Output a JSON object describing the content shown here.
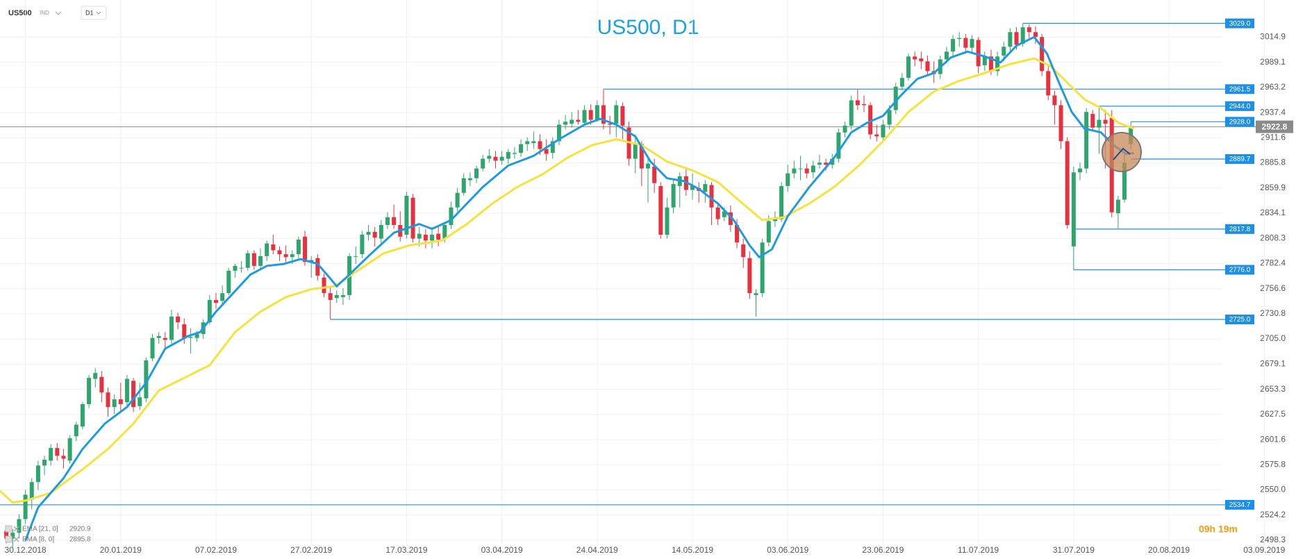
{
  "toolbar": {
    "symbol": "US500",
    "market": "IND",
    "timeframe": "D1"
  },
  "countdown": "09h 19m",
  "chart_data": {
    "type": "candlestick",
    "title": "US500, D1",
    "up_color": "#2fa56e",
    "down_color": "#e8313f",
    "grid": true,
    "xlim": [
      -4,
      200
    ],
    "ylim": [
      2494,
      3053
    ],
    "xticks": [
      {
        "value": 0,
        "label": "30.12.2018"
      },
      {
        "value": 15,
        "label": "20.01.2019"
      },
      {
        "value": 30,
        "label": "07.02.2019"
      },
      {
        "value": 45,
        "label": "27.02.2019"
      },
      {
        "value": 60,
        "label": "17.03.2019"
      },
      {
        "value": 75,
        "label": "03.04.2019"
      },
      {
        "value": 90,
        "label": "24.04.2019"
      },
      {
        "value": 105,
        "label": "14.05.2019"
      },
      {
        "value": 120,
        "label": "03.06.2019"
      },
      {
        "value": 135,
        "label": "23.06.2019"
      },
      {
        "value": 150,
        "label": "11.07.2019"
      },
      {
        "value": 165,
        "label": "31.07.2019"
      },
      {
        "value": 180,
        "label": "20.08.2019"
      },
      {
        "value": 195,
        "label": "03.09.2019"
      }
    ],
    "yticks": [
      3014.9,
      2989.1,
      2963.2,
      2937.4,
      2911.6,
      2885.8,
      2859.9,
      2834.1,
      2808.3,
      2782.4,
      2756.6,
      2730.8,
      {
        "value": 2705,
        "label": "2705.0"
      },
      2679.1,
      2653.3,
      2627.5,
      2601.6,
      2575.8,
      {
        "value": 2550,
        "label": "2550.0"
      },
      2524.2,
      2498.3
    ],
    "x": [
      -3,
      -2,
      -1,
      0,
      1,
      2,
      3,
      4,
      5,
      6,
      7,
      8,
      9,
      10,
      11,
      12,
      13,
      14,
      15,
      16,
      17,
      18,
      19,
      20,
      21,
      22,
      23,
      24,
      25,
      26,
      27,
      28,
      29,
      30,
      31,
      32,
      33,
      34,
      35,
      36,
      37,
      38,
      39,
      40,
      41,
      42,
      43,
      44,
      45,
      46,
      47,
      48,
      49,
      50,
      51,
      52,
      53,
      54,
      55,
      56,
      57,
      58,
      59,
      60,
      61,
      62,
      63,
      64,
      65,
      66,
      67,
      68,
      69,
      70,
      71,
      72,
      73,
      74,
      75,
      76,
      77,
      78,
      79,
      80,
      81,
      82,
      83,
      84,
      85,
      86,
      87,
      88,
      89,
      90,
      91,
      92,
      93,
      94,
      95,
      96,
      97,
      98,
      99,
      100,
      101,
      102,
      103,
      104,
      105,
      106,
      107,
      108,
      109,
      110,
      111,
      112,
      113,
      114,
      115,
      116,
      117,
      118,
      119,
      120,
      121,
      122,
      123,
      124,
      125,
      126,
      127,
      128,
      129,
      130,
      131,
      132,
      133,
      134,
      135,
      136,
      137,
      138,
      139,
      140,
      141,
      142,
      143,
      144,
      145,
      146,
      147,
      148,
      149,
      150,
      151,
      152,
      153,
      154,
      155,
      156,
      157,
      158,
      159,
      160,
      161,
      162,
      163,
      164,
      165,
      166,
      167,
      168,
      169,
      170,
      171,
      172,
      173,
      174
    ],
    "open": [
      2508,
      2500,
      2506,
      2520,
      2540,
      2558,
      2575,
      2580,
      2593,
      2585,
      2580,
      2605,
      2615,
      2638,
      2664,
      2666,
      2650,
      2635,
      2643,
      2640,
      2662,
      2636,
      2644,
      2685,
      2706,
      2706,
      2704,
      2728,
      2720,
      2706,
      2706,
      2710,
      2722,
      2745,
      2744,
      2752,
      2775,
      2778,
      2778,
      2793,
      2780,
      2790,
      2802,
      2796,
      2792,
      2789,
      2792,
      2810,
      2784,
      2788,
      2768,
      2752,
      2747,
      2748,
      2750,
      2790,
      2792,
      2812,
      2815,
      2808,
      2822,
      2830,
      2822,
      2812,
      2850,
      2808,
      2812,
      2806,
      2813,
      2808,
      2822,
      2840,
      2855,
      2868,
      2870,
      2880,
      2890,
      2892,
      2888,
      2890,
      2895,
      2896,
      2905,
      2906,
      2908,
      2900,
      2896,
      2908,
      2925,
      2926,
      2930,
      2927,
      2940,
      2930,
      2945,
      2926,
      2926,
      2944,
      2922,
      2890,
      2905,
      2880,
      2882,
      2862,
      2812,
      2840,
      2862,
      2872,
      2858,
      2860,
      2856,
      2863,
      2840,
      2830,
      2835,
      2822,
      2802,
      2788,
      2750,
      2752,
      2804,
      2826,
      2828,
      2862,
      2875,
      2880,
      2880,
      2876,
      2884,
      2886,
      2884,
      2890,
      2917,
      2924,
      2950,
      2946,
      2945,
      2915,
      2912,
      2925,
      2940,
      2964,
      2973,
      2995,
      2993,
      2990,
      2980,
      2977,
      2992,
      3000,
      3013,
      3014,
      3004,
      3012,
      2986,
      2995,
      2980,
      2996,
      3005,
      3020,
      3008,
      3025,
      3020,
      3015,
      2980,
      2955,
      2945,
      2908,
      2800,
      2876,
      2880,
      2936,
      2922,
      2930,
      2932,
      2834,
      2848,
      2905
    ],
    "high": [
      2512,
      2510,
      2525,
      2550,
      2562,
      2580,
      2585,
      2597,
      2598,
      2592,
      2606,
      2620,
      2640,
      2668,
      2675,
      2672,
      2655,
      2648,
      2660,
      2668,
      2665,
      2660,
      2686,
      2710,
      2712,
      2712,
      2735,
      2732,
      2726,
      2716,
      2713,
      2725,
      2750,
      2752,
      2760,
      2778,
      2782,
      2785,
      2796,
      2796,
      2798,
      2806,
      2812,
      2800,
      2801,
      2796,
      2810,
      2816,
      2790,
      2792,
      2772,
      2758,
      2755,
      2757,
      2793,
      2800,
      2816,
      2822,
      2820,
      2827,
      2835,
      2843,
      2836,
      2856,
      2854,
      2820,
      2818,
      2820,
      2822,
      2825,
      2846,
      2860,
      2875,
      2876,
      2883,
      2894,
      2900,
      2898,
      2898,
      2900,
      2902,
      2910,
      2912,
      2918,
      2915,
      2910,
      2912,
      2930,
      2935,
      2938,
      2940,
      2945,
      2946,
      2950,
      2961.5,
      2934,
      2950,
      2948,
      2928,
      2915,
      2908,
      2890,
      2890,
      2866,
      2850,
      2868,
      2876,
      2880,
      2875,
      2866,
      2868,
      2866,
      2845,
      2840,
      2842,
      2828,
      2808,
      2795,
      2756,
      2808,
      2832,
      2836,
      2866,
      2884,
      2888,
      2893,
      2885,
      2888,
      2894,
      2890,
      2895,
      2921,
      2928,
      2955,
      2961,
      2955,
      2948,
      2925,
      2930,
      2945,
      2968,
      2978,
      2998,
      3000,
      3000,
      2996,
      2990,
      2996,
      3005,
      3017,
      3020,
      3018,
      3017,
      3015,
      3000,
      3002,
      3000,
      3010,
      3024,
      3025,
      3029,
      3028,
      3026,
      3018,
      2985,
      2960,
      2950,
      2912,
      2882,
      2886,
      2942,
      2940,
      2944,
      2940,
      2940,
      2852,
      2895,
      2928
    ],
    "low": [
      2495,
      2490,
      2500,
      2515,
      2530,
      2550,
      2565,
      2575,
      2580,
      2572,
      2577,
      2600,
      2612,
      2634,
      2655,
      2640,
      2625,
      2628,
      2630,
      2635,
      2630,
      2632,
      2640,
      2682,
      2700,
      2696,
      2700,
      2715,
      2700,
      2690,
      2702,
      2705,
      2720,
      2736,
      2740,
      2750,
      2768,
      2773,
      2775,
      2776,
      2776,
      2785,
      2792,
      2785,
      2784,
      2782,
      2788,
      2780,
      2768,
      2765,
      2748,
      2725,
      2742,
      2740,
      2745,
      2782,
      2788,
      2806,
      2800,
      2802,
      2818,
      2818,
      2805,
      2808,
      2804,
      2800,
      2798,
      2798,
      2800,
      2804,
      2818,
      2836,
      2852,
      2862,
      2865,
      2877,
      2886,
      2880,
      2884,
      2885,
      2890,
      2892,
      2898,
      2900,
      2894,
      2888,
      2890,
      2904,
      2920,
      2922,
      2925,
      2925,
      2925,
      2928,
      2920,
      2915,
      2912,
      2910,
      2883,
      2875,
      2862,
      2845,
      2855,
      2808,
      2808,
      2834,
      2840,
      2852,
      2848,
      2845,
      2845,
      2822,
      2822,
      2826,
      2815,
      2798,
      2778,
      2746,
      2728,
      2748,
      2800,
      2820,
      2825,
      2856,
      2870,
      2868,
      2870,
      2870,
      2880,
      2878,
      2880,
      2886,
      2912,
      2920,
      2940,
      2938,
      2910,
      2908,
      2908,
      2920,
      2936,
      2960,
      2970,
      2985,
      2982,
      2975,
      2968,
      2972,
      2988,
      2995,
      3005,
      2998,
      2998,
      2978,
      2980,
      2976,
      2975,
      2990,
      3000,
      3002,
      3005,
      3013,
      3008,
      2975,
      2950,
      2925,
      2900,
      2818,
      2776,
      2868,
      2875,
      2918,
      2895,
      2880,
      2830,
      2817.8,
      2845,
      2900
    ],
    "close": [
      2500,
      2506,
      2520,
      2545,
      2558,
      2575,
      2581,
      2593,
      2585,
      2582,
      2603,
      2617,
      2638,
      2665,
      2670,
      2650,
      2635,
      2643,
      2638,
      2664,
      2635,
      2645,
      2683,
      2706,
      2708,
      2704,
      2728,
      2722,
      2706,
      2707,
      2710,
      2722,
      2745,
      2742,
      2752,
      2775,
      2780,
      2778,
      2793,
      2780,
      2790,
      2803,
      2796,
      2792,
      2789,
      2792,
      2807,
      2784,
      2786,
      2770,
      2752,
      2745,
      2750,
      2750,
      2790,
      2790,
      2812,
      2815,
      2809,
      2822,
      2830,
      2822,
      2810,
      2852,
      2808,
      2813,
      2806,
      2812,
      2807,
      2822,
      2840,
      2855,
      2870,
      2870,
      2880,
      2890,
      2893,
      2888,
      2892,
      2897,
      2896,
      2905,
      2908,
      2908,
      2900,
      2895,
      2908,
      2925,
      2928,
      2930,
      2928,
      2940,
      2930,
      2945,
      2926,
      2925,
      2945,
      2924,
      2890,
      2905,
      2880,
      2885,
      2865,
      2812,
      2840,
      2864,
      2872,
      2858,
      2862,
      2857,
      2864,
      2840,
      2828,
      2836,
      2822,
      2804,
      2789,
      2752,
      2752,
      2804,
      2826,
      2828,
      2862,
      2875,
      2880,
      2880,
      2875,
      2883,
      2886,
      2884,
      2890,
      2917,
      2924,
      2950,
      2945,
      2945,
      2915,
      2913,
      2925,
      2940,
      2964,
      2973,
      2995,
      2992,
      2990,
      2980,
      2977,
      2992,
      3000,
      3013,
      3014,
      3004,
      3013,
      2985,
      2995,
      2980,
      2995,
      3005,
      3020,
      3007,
      3025,
      3020,
      3015,
      2980,
      2955,
      2945,
      2908,
      2822,
      2876,
      2880,
      2938,
      2922,
      2930,
      2926,
      2835,
      2848,
      2886,
      2922.8
    ],
    "series": [
      {
        "name": "EMA [21, 0]",
        "color": "#f5e23c",
        "x": [
          -4,
          -2,
          0,
          4,
          9,
          13,
          17,
          21,
          25,
          29,
          33,
          37,
          41,
          45,
          48.6,
          52.5,
          56.4,
          60.4,
          65.6,
          69.5,
          73.5,
          77.4,
          81.4,
          85.3,
          89.2,
          93,
          97,
          101,
          105,
          109,
          112.9,
          116,
          119.4,
          123.4,
          127.3,
          131.2,
          135,
          139,
          143,
          147,
          151,
          154.9,
          158.8,
          161.4,
          164,
          166.7,
          169.3,
          172,
          174.5
        ],
        "values": [
          2549,
          2537,
          2539,
          2547,
          2571,
          2592,
          2618,
          2652,
          2665,
          2678,
          2712,
          2733,
          2748,
          2756,
          2759,
          2776,
          2793,
          2801,
          2806,
          2823,
          2844,
          2861,
          2874,
          2891,
          2904,
          2910,
          2904,
          2887,
          2878,
          2866,
          2844,
          2827,
          2830,
          2844,
          2861,
          2883,
          2908,
          2938,
          2959,
          2970,
          2978,
          2987,
          2993,
          2985,
          2968,
          2951,
          2942,
          2927,
          2920.9
        ]
      },
      {
        "name": "EMA [8, 0]",
        "color": "#1e9be0",
        "x": [
          0,
          2,
          6,
          9,
          12.5,
          16,
          19,
          22,
          25.6,
          27.5,
          30,
          33,
          35.4,
          38,
          40.7,
          43.3,
          46,
          48,
          49,
          51,
          54,
          58,
          62,
          64,
          67,
          69.5,
          72,
          76,
          80,
          84,
          88,
          90.5,
          93,
          96,
          98.4,
          101,
          103.7,
          106,
          109,
          111.5,
          114,
          115.5,
          117.5,
          120,
          123.4,
          127.3,
          130,
          132.5,
          135,
          137.8,
          140.4,
          143,
          145.7,
          148.3,
          151,
          153.5,
          156,
          158.8,
          160.8,
          162.7,
          164.7,
          166.7,
          169.3,
          171.3,
          173.2,
          174.5
        ],
        "values": [
          2498,
          2532,
          2562,
          2592,
          2618,
          2635,
          2660,
          2695,
          2708,
          2712,
          2733,
          2754,
          2771,
          2780,
          2782,
          2787,
          2782,
          2767,
          2759,
          2771,
          2790,
          2814,
          2823,
          2818,
          2827,
          2844,
          2861,
          2883,
          2893,
          2910,
          2925,
          2931,
          2925,
          2913,
          2887,
          2870,
          2867,
          2859,
          2844,
          2827,
          2801,
          2789,
          2797,
          2831,
          2861,
          2891,
          2917,
          2927,
          2934,
          2955,
          2972,
          2978,
          2994,
          3000,
          2995,
          2989,
          3006,
          3015,
          2998,
          2968,
          2938,
          2921,
          2917,
          2904,
          2895,
          2895.8
        ]
      }
    ],
    "levels": {
      "color": "#1e8fe6",
      "values": [
        3029,
        2961.5,
        2944,
        2928,
        2889.7,
        2817.8,
        2776,
        2725,
        2534.7
      ],
      "value_labels": [
        "3029.0",
        "2961.5",
        "2944.0",
        "2928.0",
        "2889.7",
        "2817.8",
        "2776.0",
        "2725.0",
        "2534.7"
      ],
      "x_start": [
        157,
        91,
        169,
        174,
        174,
        165,
        165,
        48,
        -4
      ]
    },
    "current_price": {
      "value": 2922.8,
      "color": "#8a8a8a"
    }
  }
}
